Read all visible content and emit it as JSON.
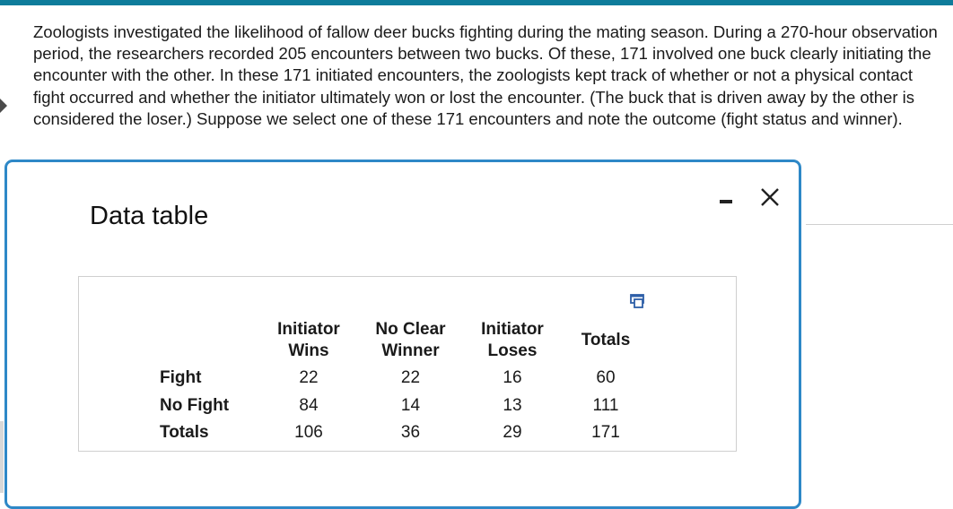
{
  "question_text": "Zoologists investigated the likelihood of fallow deer bucks fighting during the mating season. During a 270-hour observation period, the researchers recorded 205 encounters between two bucks. Of these, 171 involved one buck clearly initiating the encounter with the other. In these 171 initiated encounters, the zoologists kept track of whether or not a physical contact fight occurred and whether the initiator ultimately won or lost the encounter. (The buck that is driven away by the other is considered the loser.) Suppose we select one of these 171 encounters and note the outcome (fight status and winner).",
  "modal": {
    "title": "Data table",
    "icons": {
      "minimize": "minimize-icon",
      "close": "close-icon",
      "copy": "copy-icon"
    }
  },
  "table": {
    "headers": [
      {
        "line1": "Initiator",
        "line2": "Wins"
      },
      {
        "line1": "No Clear",
        "line2": "Winner"
      },
      {
        "line1": "Initiator",
        "line2": "Loses"
      },
      {
        "line1": "Totals",
        "line2": ""
      }
    ],
    "rows": [
      {
        "label": "Fight",
        "values": [
          "22",
          "22",
          "16",
          "60"
        ]
      },
      {
        "label": "No Fight",
        "values": [
          "84",
          "14",
          "13",
          "111"
        ]
      },
      {
        "label": "Totals",
        "values": [
          "106",
          "36",
          "29",
          "171"
        ]
      }
    ]
  },
  "colors": {
    "accent_bar": "#0e7c9b",
    "modal_border": "#2e88c7"
  }
}
